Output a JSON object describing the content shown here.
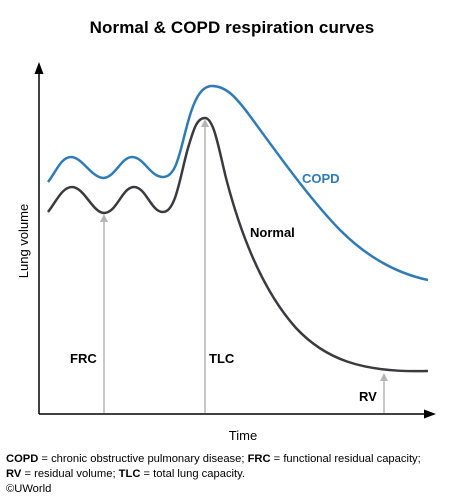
{
  "title": "Normal & COPD respiration curves",
  "axes": {
    "xlabel": "Time",
    "ylabel": "Lung volume"
  },
  "curves": {
    "copd": {
      "label": "COPD",
      "color": "#2f7bb6"
    },
    "normal": {
      "label": "Normal",
      "color": "#3a3a3f"
    }
  },
  "markers": {
    "frc": "FRC",
    "tlc": "TLC",
    "rv": "RV",
    "color": "#b5b5b5"
  },
  "footnote": {
    "items": [
      {
        "abbr": "COPD",
        "text": " = chronic obstructive pulmonary disease; "
      },
      {
        "abbr": "FRC",
        "text": " = functional residual capacity; "
      },
      {
        "abbr": "RV",
        "text": " = residual volume; "
      },
      {
        "abbr": "TLC",
        "text": " = total lung capacity."
      }
    ]
  },
  "copyright": "©UWorld"
}
